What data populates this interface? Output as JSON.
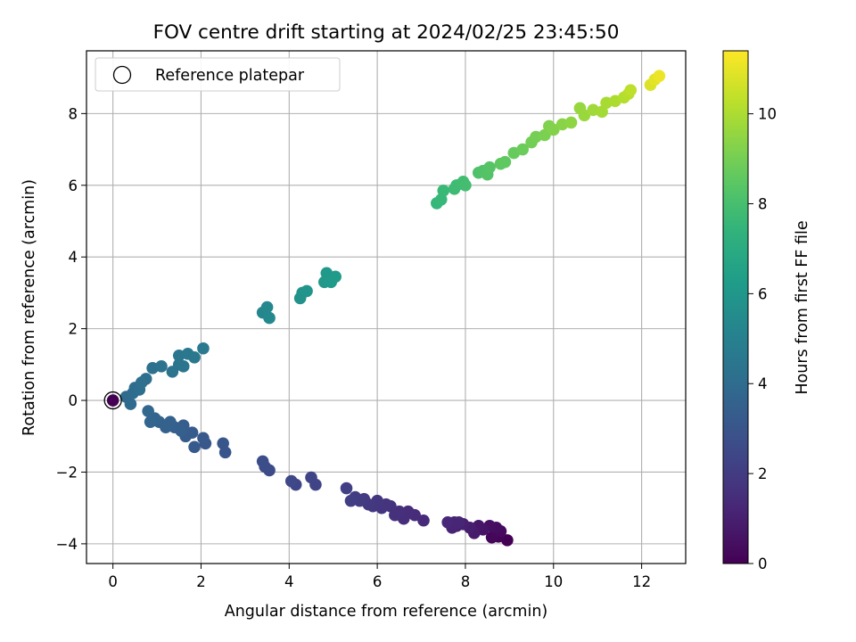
{
  "chart_data": {
    "type": "scatter",
    "title": "FOV centre drift starting at 2024/02/25 23:45:50",
    "xlabel": "Angular distance from reference (arcmin)",
    "ylabel": "Rotation from reference (arcmin)",
    "xlim": [
      -0.6,
      13.0
    ],
    "ylim": [
      -4.55,
      9.75
    ],
    "xticks": [
      0,
      2,
      4,
      6,
      8,
      10,
      12
    ],
    "yticks": [
      -4,
      -2,
      0,
      2,
      4,
      6,
      8
    ],
    "grid": true,
    "legend": {
      "placement": "top-left",
      "entries": [
        "Reference platepar"
      ]
    },
    "colorbar": {
      "label": "Hours from first FF file",
      "min": 0,
      "max": 11.4,
      "ticks": [
        0,
        2,
        4,
        6,
        8,
        10
      ],
      "colormap": "viridis"
    },
    "reference_point": {
      "x": 0,
      "y": 0
    },
    "points": [
      [
        8.95,
        -3.9,
        0.0
      ],
      [
        8.75,
        -3.8,
        0.1
      ],
      [
        8.6,
        -3.82,
        0.2
      ],
      [
        8.8,
        -3.65,
        0.3
      ],
      [
        8.7,
        -3.55,
        0.4
      ],
      [
        8.55,
        -3.5,
        0.5
      ],
      [
        8.4,
        -3.6,
        0.6
      ],
      [
        8.3,
        -3.5,
        0.7
      ],
      [
        8.2,
        -3.7,
        0.8
      ],
      [
        8.1,
        -3.55,
        0.9
      ],
      [
        7.95,
        -3.45,
        1.0
      ],
      [
        7.8,
        -3.5,
        1.05
      ],
      [
        7.75,
        -3.4,
        1.1
      ],
      [
        7.7,
        -3.55,
        1.15
      ],
      [
        7.85,
        -3.4,
        1.2
      ],
      [
        7.6,
        -3.4,
        1.25
      ],
      [
        7.05,
        -3.35,
        1.35
      ],
      [
        6.85,
        -3.2,
        1.4
      ],
      [
        6.7,
        -3.1,
        1.45
      ],
      [
        6.6,
        -3.3,
        1.5
      ],
      [
        6.5,
        -3.1,
        1.55
      ],
      [
        6.4,
        -3.2,
        1.6
      ],
      [
        6.3,
        -2.95,
        1.65
      ],
      [
        6.2,
        -2.9,
        1.7
      ],
      [
        6.1,
        -3.0,
        1.75
      ],
      [
        6.0,
        -2.8,
        1.8
      ],
      [
        5.9,
        -2.95,
        1.85
      ],
      [
        5.8,
        -2.9,
        1.9
      ],
      [
        5.7,
        -2.75,
        1.95
      ],
      [
        5.6,
        -2.8,
        2.0
      ],
      [
        5.5,
        -2.7,
        2.05
      ],
      [
        5.4,
        -2.8,
        2.1
      ],
      [
        5.3,
        -2.45,
        2.15
      ],
      [
        4.6,
        -2.35,
        2.3
      ],
      [
        4.5,
        -2.15,
        2.35
      ],
      [
        4.15,
        -2.35,
        2.4
      ],
      [
        4.05,
        -2.25,
        2.45
      ],
      [
        3.55,
        -1.95,
        2.6
      ],
      [
        3.45,
        -1.85,
        2.65
      ],
      [
        3.4,
        -1.7,
        2.7
      ],
      [
        2.55,
        -1.45,
        3.0
      ],
      [
        2.5,
        -1.2,
        3.05
      ],
      [
        2.1,
        -1.2,
        3.1
      ],
      [
        2.05,
        -1.05,
        3.15
      ],
      [
        1.85,
        -1.3,
        3.2
      ],
      [
        1.8,
        -0.9,
        3.25
      ],
      [
        1.65,
        -1.0,
        3.3
      ],
      [
        1.6,
        -0.7,
        3.35
      ],
      [
        1.55,
        -0.85,
        3.4
      ],
      [
        1.4,
        -0.75,
        3.45
      ],
      [
        1.3,
        -0.6,
        3.5
      ],
      [
        1.2,
        -0.75,
        3.55
      ],
      [
        1.05,
        -0.6,
        3.6
      ],
      [
        0.95,
        -0.5,
        3.65
      ],
      [
        0.85,
        -0.6,
        3.7
      ],
      [
        0.8,
        -0.3,
        3.75
      ],
      [
        0.4,
        -0.1,
        3.9
      ],
      [
        0.3,
        0.1,
        3.95
      ],
      [
        0.45,
        0.2,
        4.0
      ],
      [
        0.5,
        0.35,
        4.05
      ],
      [
        0.6,
        0.3,
        4.1
      ],
      [
        0.75,
        0.6,
        4.15
      ],
      [
        0.65,
        0.5,
        4.2
      ],
      [
        0.9,
        0.9,
        4.25
      ],
      [
        1.1,
        0.95,
        4.3
      ],
      [
        1.35,
        0.8,
        4.35
      ],
      [
        1.5,
        1.0,
        4.4
      ],
      [
        1.6,
        0.95,
        4.45
      ],
      [
        1.5,
        1.25,
        4.5
      ],
      [
        1.7,
        1.3,
        4.55
      ],
      [
        1.85,
        1.2,
        4.6
      ],
      [
        2.05,
        1.45,
        4.65
      ],
      [
        3.4,
        2.45,
        5.3
      ],
      [
        3.5,
        2.6,
        5.35
      ],
      [
        3.55,
        2.3,
        5.4
      ],
      [
        4.25,
        2.85,
        5.8
      ],
      [
        4.3,
        3.0,
        5.85
      ],
      [
        4.4,
        3.05,
        5.9
      ],
      [
        4.8,
        3.3,
        6.05
      ],
      [
        4.85,
        3.55,
        6.1
      ],
      [
        4.95,
        3.3,
        6.15
      ],
      [
        5.05,
        3.45,
        6.2
      ],
      [
        7.35,
        5.5,
        7.6
      ],
      [
        7.45,
        5.6,
        7.65
      ],
      [
        7.5,
        5.85,
        7.7
      ],
      [
        7.75,
        5.9,
        7.8
      ],
      [
        7.8,
        6.0,
        7.85
      ],
      [
        7.95,
        6.1,
        7.9
      ],
      [
        8.0,
        6.0,
        7.95
      ],
      [
        8.3,
        6.35,
        8.2
      ],
      [
        8.4,
        6.4,
        8.25
      ],
      [
        8.5,
        6.3,
        8.3
      ],
      [
        8.55,
        6.5,
        8.35
      ],
      [
        8.8,
        6.6,
        8.5
      ],
      [
        8.9,
        6.65,
        8.55
      ],
      [
        9.1,
        6.9,
        8.7
      ],
      [
        9.3,
        7.0,
        8.8
      ],
      [
        9.5,
        7.2,
        8.95
      ],
      [
        9.6,
        7.35,
        9.0
      ],
      [
        9.8,
        7.4,
        9.1
      ],
      [
        9.9,
        7.65,
        9.2
      ],
      [
        10.0,
        7.55,
        9.25
      ],
      [
        10.2,
        7.7,
        9.35
      ],
      [
        10.4,
        7.75,
        9.45
      ],
      [
        10.6,
        8.15,
        9.6
      ],
      [
        10.7,
        7.95,
        9.65
      ],
      [
        10.9,
        8.1,
        9.75
      ],
      [
        11.1,
        8.05,
        9.85
      ],
      [
        11.2,
        8.3,
        9.9
      ],
      [
        11.4,
        8.35,
        10.0
      ],
      [
        11.6,
        8.45,
        10.1
      ],
      [
        11.7,
        8.55,
        10.2
      ],
      [
        11.75,
        8.65,
        10.3
      ],
      [
        12.2,
        8.8,
        10.8
      ],
      [
        12.3,
        8.95,
        10.95
      ],
      [
        12.4,
        9.05,
        11.1
      ]
    ]
  }
}
